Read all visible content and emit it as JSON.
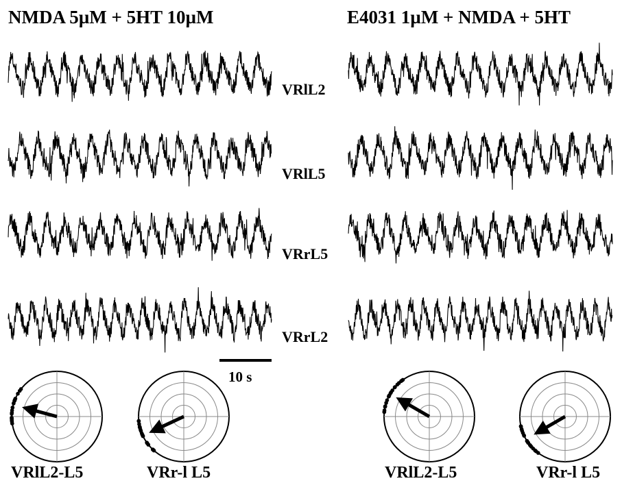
{
  "panels": [
    {
      "title": "NMDA 5µM + 5HT 10µM"
    },
    {
      "title": "E4031 1µM + NMDA + 5HT"
    }
  ],
  "trace_labels": [
    "VRlL2",
    "VRlL5",
    "VRrL5",
    "VRrL2"
  ],
  "scale_bar": {
    "label": "10 s"
  },
  "polar_plots": [
    {
      "label": "VRlL2-L5",
      "phase_deg": 165,
      "vector_r": 0.8
    },
    {
      "label": "VRr-l L5",
      "phase_deg": 205,
      "vector_r": 0.85
    },
    {
      "label": "VRlL2-L5",
      "phase_deg": 150,
      "vector_r": 0.85
    },
    {
      "label": "VRr-l L5",
      "phase_deg": 210,
      "vector_r": 0.8
    }
  ],
  "colors": {
    "trace": "#000000",
    "grid": "#888888",
    "background": "#ffffff"
  }
}
